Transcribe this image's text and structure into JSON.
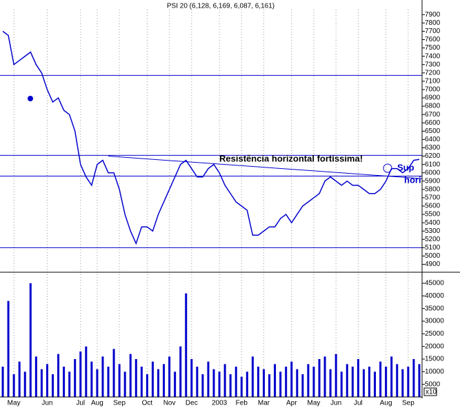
{
  "chart_data": [
    {
      "type": "line",
      "title": "PSI 20 (6,128, 6,169, 6,087, 6,161)",
      "annotations": [
        "Resistência horizontal fortíssima!",
        "Sup",
        "hori"
      ],
      "categories": [
        null,
        null,
        "May",
        null,
        null,
        null,
        null,
        null,
        "Jun",
        null,
        null,
        null,
        null,
        null,
        "Jul",
        null,
        null,
        "Aug",
        null,
        null,
        null,
        "Sep",
        null,
        null,
        null,
        null,
        "Oct",
        null,
        null,
        null,
        "Nov",
        null,
        null,
        null,
        "Dec",
        null,
        null,
        null,
        null,
        "2003",
        null,
        null,
        null,
        "Feb",
        null,
        null,
        null,
        "Mar",
        null,
        null,
        null,
        null,
        "Apr",
        null,
        null,
        null,
        "May",
        null,
        null,
        null,
        "Jun",
        null,
        null,
        null,
        "Jul",
        null,
        null,
        null,
        null,
        "Aug",
        null,
        null,
        null,
        "Sep",
        null,
        null
      ],
      "values": [
        7700,
        7650,
        7300,
        7350,
        7400,
        7450,
        7300,
        7200,
        7000,
        6850,
        6900,
        6750,
        6700,
        6500,
        6100,
        5950,
        5850,
        6100,
        6150,
        6000,
        6000,
        5800,
        5500,
        5300,
        5150,
        5350,
        5350,
        5300,
        5500,
        5650,
        5800,
        5950,
        6100,
        6150,
        6050,
        5950,
        5950,
        6050,
        6100,
        6000,
        5850,
        5750,
        5650,
        5600,
        5550,
        5250,
        5250,
        5300,
        5350,
        5350,
        5450,
        5500,
        5400,
        5500,
        5600,
        5650,
        5700,
        5750,
        5900,
        5950,
        5900,
        5850,
        5900,
        5850,
        5850,
        5800,
        5750,
        5750,
        5800,
        5900,
        6050,
        6050,
        6000,
        6050,
        6150,
        6161
      ],
      "color": "#0000cc",
      "hlines": [
        7170,
        6210,
        5960,
        5100
      ],
      "trendline": {
        "start": 6200,
        "end": 5930
      },
      "ylim": [
        4830,
        7960
      ],
      "yticks": [
        4900,
        5000,
        5100,
        5200,
        5300,
        5400,
        5500,
        5600,
        5700,
        5800,
        5900,
        6000,
        6100,
        6200,
        6300,
        6400,
        6500,
        6600,
        6700,
        6800,
        6900,
        7000,
        7100,
        7200,
        7300,
        7400,
        7500,
        7600,
        7700,
        7800,
        7900
      ],
      "grid": true
    },
    {
      "type": "bar",
      "values": [
        12000,
        38000,
        9000,
        14000,
        10000,
        45000,
        16000,
        11000,
        13000,
        9000,
        17000,
        12000,
        10000,
        15000,
        18000,
        20000,
        14000,
        11000,
        16000,
        12000,
        19000,
        13000,
        10000,
        17000,
        15000,
        12000,
        9000,
        14000,
        11000,
        13000,
        16000,
        10000,
        20000,
        41000,
        15000,
        12000,
        9000,
        14000,
        11000,
        10000,
        13000,
        9000,
        12000,
        8000,
        10000,
        16000,
        12000,
        11000,
        9000,
        13000,
        10000,
        12000,
        14000,
        11000,
        9000,
        13000,
        12000,
        15000,
        16000,
        11000,
        17000,
        10000,
        13000,
        12000,
        15000,
        11000,
        12000,
        10000,
        14000,
        12000,
        16000,
        13000,
        11000,
        12000,
        15000,
        13000
      ],
      "color": "#0000cc",
      "ylim": [
        0,
        48000
      ],
      "yticks": [
        5000,
        10000,
        15000,
        20000,
        25000,
        30000,
        35000,
        40000,
        45000
      ],
      "unit_label": "x10"
    }
  ]
}
